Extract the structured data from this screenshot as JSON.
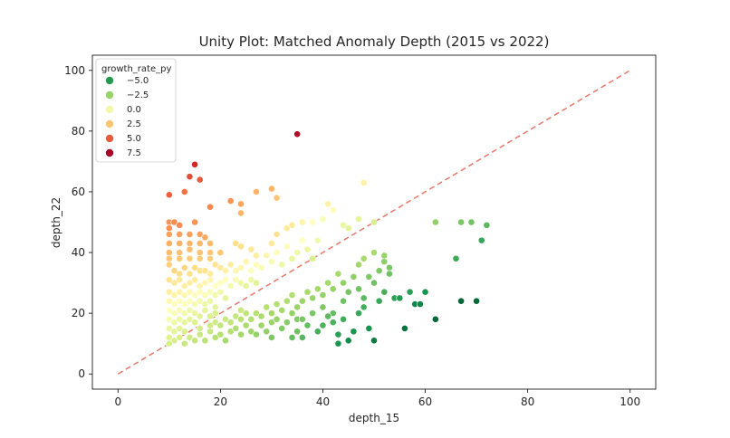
{
  "chart_data": {
    "type": "scatter",
    "title": "Unity Plot: Matched Anomaly Depth (2015 vs 2022)",
    "xlabel": "depth_15",
    "ylabel": "depth_22",
    "xlim": [
      -5,
      105
    ],
    "ylim": [
      -5,
      105
    ],
    "xticks": [
      0,
      20,
      40,
      60,
      80,
      100
    ],
    "yticks": [
      0,
      20,
      40,
      60,
      80,
      100
    ],
    "unity_line": {
      "from": [
        0,
        0
      ],
      "to": [
        100,
        100
      ],
      "color": "#e8786a",
      "style": "dashed"
    },
    "hue": "growth_rate_py",
    "palette": "RdYlGn_r",
    "hue_range": [
      -6,
      9
    ],
    "legend": {
      "title": "growth_rate_py",
      "position": "top-left",
      "entries": [
        {
          "label": "−5.0",
          "value": -5.0,
          "color": "#249a50"
        },
        {
          "label": "−2.5",
          "value": -2.5,
          "color": "#98d368"
        },
        {
          "label": "0.0",
          "value": 0.0,
          "color": "#f1f9a9"
        },
        {
          "label": "2.5",
          "value": 2.5,
          "color": "#fdc574"
        },
        {
          "label": "5.0",
          "value": 5.0,
          "color": "#e85b3a"
        },
        {
          "label": "7.5",
          "value": 7.5,
          "color": "#a50026"
        }
      ]
    },
    "points": [
      [
        10,
        59,
        6.4
      ],
      [
        13,
        60,
        5.9
      ],
      [
        14,
        65,
        6.8
      ],
      [
        15,
        69,
        7.7
      ],
      [
        16,
        64,
        6.5
      ],
      [
        35,
        79,
        8.6
      ],
      [
        10,
        50,
        5.1
      ],
      [
        10,
        48,
        5.2
      ],
      [
        11,
        50,
        5.3
      ],
      [
        12,
        49,
        5.3
      ],
      [
        15,
        50,
        5.1
      ],
      [
        18,
        55,
        5.4
      ],
      [
        24,
        53,
        4.3
      ],
      [
        24,
        56,
        4.7
      ],
      [
        27,
        60,
        4.3
      ],
      [
        30,
        61,
        4.3
      ],
      [
        31,
        58,
        3.8
      ],
      [
        22,
        57,
        5.1
      ],
      [
        10,
        46,
        4.8
      ],
      [
        12,
        46,
        4.9
      ],
      [
        14,
        46,
        4.8
      ],
      [
        16,
        46,
        4.8
      ],
      [
        17,
        45,
        4.6
      ],
      [
        10,
        43,
        4.4
      ],
      [
        12,
        43,
        4.4
      ],
      [
        14,
        43,
        4.3
      ],
      [
        16,
        43,
        4.2
      ],
      [
        18,
        43,
        4.1
      ],
      [
        10,
        40,
        4.1
      ],
      [
        12,
        40,
        4.0
      ],
      [
        14,
        41,
        4.0
      ],
      [
        16,
        40,
        3.9
      ],
      [
        18,
        40,
        3.8
      ],
      [
        20,
        40,
        3.7
      ],
      [
        10,
        38,
        3.8
      ],
      [
        12,
        38,
        3.7
      ],
      [
        14,
        38,
        3.6
      ],
      [
        16,
        38,
        3.6
      ],
      [
        18,
        38,
        3.5
      ],
      [
        23,
        43,
        3.0
      ],
      [
        24,
        42,
        2.9
      ],
      [
        26,
        41,
        2.6
      ],
      [
        27,
        39,
        2.3
      ],
      [
        29,
        39,
        2.0
      ],
      [
        30,
        43,
        2.5
      ],
      [
        31,
        46,
        2.8
      ],
      [
        33,
        48,
        2.6
      ],
      [
        34,
        49,
        2.5
      ],
      [
        36,
        50,
        2.1
      ],
      [
        38,
        50,
        1.5
      ],
      [
        40,
        51,
        1.4
      ],
      [
        41,
        56,
        2.1
      ],
      [
        42,
        54,
        1.7
      ],
      [
        47,
        51,
        0.5
      ],
      [
        48,
        63,
        2.2
      ],
      [
        50,
        50,
        0.0
      ],
      [
        44,
        49,
        0.7
      ],
      [
        45,
        48,
        0.4
      ],
      [
        10,
        36,
        3.5
      ],
      [
        11,
        34,
        3.3
      ],
      [
        12,
        33,
        3.1
      ],
      [
        13,
        35,
        3.3
      ],
      [
        14,
        33,
        2.9
      ],
      [
        15,
        35,
        3.1
      ],
      [
        16,
        34,
        2.9
      ],
      [
        17,
        34,
        2.8
      ],
      [
        18,
        33,
        2.5
      ],
      [
        19,
        36,
        2.8
      ],
      [
        20,
        35,
        2.5
      ],
      [
        21,
        34,
        2.2
      ],
      [
        22,
        36,
        2.3
      ],
      [
        23,
        34,
        1.9
      ],
      [
        24,
        35,
        1.9
      ],
      [
        25,
        37,
        2.0
      ],
      [
        26,
        34,
        1.4
      ],
      [
        27,
        36,
        1.6
      ],
      [
        28,
        35,
        1.2
      ],
      [
        30,
        37,
        1.2
      ],
      [
        31,
        40,
        1.6
      ],
      [
        32,
        36,
        0.8
      ],
      [
        34,
        38,
        0.7
      ],
      [
        35,
        40,
        0.9
      ],
      [
        37,
        41,
        0.7
      ],
      [
        38,
        38,
        0.0
      ],
      [
        39,
        44,
        1.0
      ],
      [
        36,
        44,
        1.5
      ],
      [
        33,
        42,
        1.6
      ],
      [
        10,
        31,
        2.8
      ],
      [
        11,
        30,
        2.6
      ],
      [
        12,
        31,
        2.6
      ],
      [
        13,
        29,
        2.3
      ],
      [
        14,
        30,
        2.3
      ],
      [
        15,
        31,
        2.3
      ],
      [
        16,
        29,
        2.0
      ],
      [
        17,
        30,
        1.9
      ],
      [
        18,
        31,
        1.9
      ],
      [
        19,
        29,
        1.5
      ],
      [
        20,
        30,
        1.5
      ],
      [
        21,
        31,
        1.5
      ],
      [
        22,
        29,
        1.1
      ],
      [
        23,
        31,
        1.2
      ],
      [
        24,
        30,
        0.9
      ],
      [
        25,
        29,
        0.6
      ],
      [
        26,
        31,
        0.8
      ],
      [
        27,
        30,
        0.4
      ],
      [
        10,
        27,
        2.3
      ],
      [
        11,
        26,
        2.1
      ],
      [
        12,
        27,
        2.1
      ],
      [
        13,
        26,
        1.9
      ],
      [
        14,
        27,
        1.8
      ],
      [
        15,
        26,
        1.6
      ],
      [
        16,
        27,
        1.6
      ],
      [
        17,
        26,
        1.3
      ],
      [
        18,
        27,
        1.3
      ],
      [
        19,
        26,
        1.0
      ],
      [
        20,
        27,
        0.9
      ],
      [
        21,
        25,
        0.5
      ],
      [
        10,
        24,
        1.9
      ],
      [
        11,
        23,
        1.7
      ],
      [
        12,
        24,
        1.7
      ],
      [
        13,
        23,
        1.4
      ],
      [
        14,
        24,
        1.4
      ],
      [
        15,
        23,
        1.1
      ],
      [
        16,
        24,
        1.1
      ],
      [
        17,
        23,
        0.8
      ],
      [
        18,
        24,
        0.8
      ],
      [
        19,
        22,
        0.4
      ],
      [
        10,
        21,
        1.5
      ],
      [
        11,
        20,
        1.3
      ],
      [
        12,
        21,
        1.2
      ],
      [
        13,
        20,
        1.0
      ],
      [
        14,
        21,
        0.9
      ],
      [
        15,
        20,
        0.7
      ],
      [
        16,
        19,
        0.4
      ],
      [
        17,
        21,
        0.5
      ],
      [
        18,
        19,
        0.1
      ],
      [
        19,
        20,
        0.1
      ],
      [
        10,
        18,
        1.1
      ],
      [
        11,
        17,
        0.9
      ],
      [
        12,
        18,
        0.8
      ],
      [
        13,
        17,
        0.6
      ],
      [
        14,
        18,
        0.5
      ],
      [
        15,
        17,
        0.2
      ],
      [
        10,
        15,
        0.7
      ],
      [
        11,
        14,
        0.5
      ],
      [
        12,
        15,
        0.4
      ],
      [
        13,
        14,
        0.1
      ],
      [
        10,
        12,
        0.3
      ],
      [
        11,
        11,
        0.0
      ],
      [
        12,
        12,
        0.0
      ],
      [
        10,
        10,
        0.0
      ],
      [
        13,
        10,
        -0.4
      ],
      [
        14,
        12,
        -0.3
      ],
      [
        15,
        11,
        -0.6
      ],
      [
        16,
        13,
        -0.4
      ],
      [
        17,
        11,
        -0.9
      ],
      [
        18,
        14,
        -0.5
      ],
      [
        19,
        12,
        -1.0
      ],
      [
        20,
        13,
        -1.0
      ],
      [
        21,
        11,
        -1.4
      ],
      [
        22,
        14,
        -1.1
      ],
      [
        16,
        15,
        -0.1
      ],
      [
        18,
        16,
        -0.3
      ],
      [
        19,
        17,
        -0.3
      ],
      [
        20,
        16,
        -0.6
      ],
      [
        21,
        18,
        -0.4
      ],
      [
        22,
        17,
        -0.7
      ],
      [
        23,
        19,
        -0.6
      ],
      [
        24,
        18,
        -0.9
      ],
      [
        25,
        20,
        -0.7
      ],
      [
        24,
        21,
        -0.4
      ],
      [
        23,
        15,
        -1.2
      ],
      [
        24,
        13,
        -1.5
      ],
      [
        25,
        16,
        -1.3
      ],
      [
        26,
        14,
        -1.7
      ],
      [
        27,
        13,
        -1.9
      ],
      [
        26,
        18,
        -1.1
      ],
      [
        27,
        20,
        -1.0
      ],
      [
        28,
        16,
        -1.7
      ],
      [
        28,
        19,
        -1.3
      ],
      [
        29,
        22,
        -1.0
      ],
      [
        29,
        14,
        -2.0
      ],
      [
        30,
        12,
        -2.4
      ],
      [
        30,
        17,
        -1.8
      ],
      [
        30,
        20,
        -1.5
      ],
      [
        31,
        18,
        -1.8
      ],
      [
        31,
        23,
        -1.1
      ],
      [
        32,
        21,
        -1.5
      ],
      [
        32,
        15,
        -2.3
      ],
      [
        33,
        24,
        -1.2
      ],
      [
        33,
        17,
        -2.2
      ],
      [
        34,
        20,
        -1.9
      ],
      [
        34,
        26,
        -1.1
      ],
      [
        35,
        18,
        -2.3
      ],
      [
        35,
        22,
        -1.8
      ],
      [
        36,
        24,
        -1.7
      ],
      [
        36,
        18,
        -2.5
      ],
      [
        37,
        27,
        -1.4
      ],
      [
        38,
        20,
        -2.5
      ],
      [
        38,
        25,
        -1.8
      ],
      [
        39,
        28,
        -1.5
      ],
      [
        40,
        22,
        -2.4
      ],
      [
        40,
        26,
        -1.9
      ],
      [
        41,
        30,
        -1.5
      ],
      [
        42,
        20,
        -3.0
      ],
      [
        42,
        28,
        -1.9
      ],
      [
        43,
        33,
        -1.4
      ],
      [
        44,
        24,
        -2.8
      ],
      [
        44,
        30,
        -2.0
      ],
      [
        45,
        27,
        -2.6
      ],
      [
        46,
        32,
        -2.0
      ],
      [
        47,
        28,
        -2.7
      ],
      [
        47,
        36,
        -1.6
      ],
      [
        48,
        25,
        -3.2
      ],
      [
        48,
        38,
        -1.4
      ],
      [
        49,
        32,
        -2.4
      ],
      [
        50,
        30,
        -2.8
      ],
      [
        50,
        40,
        -1.4
      ],
      [
        51,
        34,
        -2.4
      ],
      [
        52,
        37,
        -2.1
      ],
      [
        52,
        39,
        -1.8
      ],
      [
        53,
        35,
        -2.5
      ],
      [
        53,
        33,
        -2.8
      ],
      [
        34,
        12,
        -3.0
      ],
      [
        35,
        14,
        -2.8
      ],
      [
        36,
        12,
        -3.3
      ],
      [
        37,
        16,
        -3.0
      ],
      [
        39,
        14,
        -3.6
      ],
      [
        40,
        16,
        -3.4
      ],
      [
        41,
        19,
        -3.2
      ],
      [
        42,
        17,
        -3.5
      ],
      [
        43,
        13,
        -4.2
      ],
      [
        43,
        10,
        -4.6
      ],
      [
        44,
        18,
        -3.7
      ],
      [
        45,
        11,
        -4.9
      ],
      [
        46,
        14,
        -4.6
      ],
      [
        47,
        20,
        -3.9
      ],
      [
        48,
        22,
        -3.7
      ],
      [
        49,
        15,
        -4.7
      ],
      [
        50,
        11,
        -5.4
      ],
      [
        51,
        24,
        -3.9
      ],
      [
        52,
        27,
        -3.6
      ],
      [
        54,
        25,
        -4.2
      ],
      [
        55,
        25,
        -4.4
      ],
      [
        56,
        15,
        -5.7
      ],
      [
        57,
        27,
        -4.2
      ],
      [
        58,
        23,
        -5.0
      ],
      [
        59,
        23,
        -5.1
      ],
      [
        60,
        27,
        -4.6
      ],
      [
        62,
        18,
        -6.0
      ],
      [
        66,
        38,
        -3.8
      ],
      [
        67,
        24,
        -6.0
      ],
      [
        70,
        24,
        -6.0
      ],
      [
        62,
        50,
        -2.0
      ],
      [
        67,
        50,
        -2.5
      ],
      [
        69,
        50,
        -2.7
      ],
      [
        71,
        44,
        -3.9
      ],
      [
        72,
        49,
        -3.2
      ]
    ]
  }
}
